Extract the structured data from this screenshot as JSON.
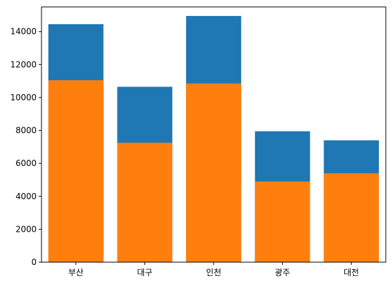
{
  "chart_data": {
    "type": "bar",
    "stacked": false,
    "categories": [
      "부산",
      "대구",
      "인천",
      "광주",
      "대전"
    ],
    "series": [
      {
        "color": "#1f77b4",
        "values": [
          14450,
          10650,
          14950,
          7950,
          7400
        ]
      },
      {
        "color": "#ff7f0e",
        "values": [
          11050,
          7250,
          10850,
          4900,
          5400
        ]
      }
    ],
    "ylim": [
      0,
      15500
    ],
    "yticks": [
      0,
      2000,
      4000,
      6000,
      8000,
      10000,
      12000,
      14000
    ],
    "grid": false,
    "title": "",
    "xlabel": "",
    "ylabel": ""
  }
}
